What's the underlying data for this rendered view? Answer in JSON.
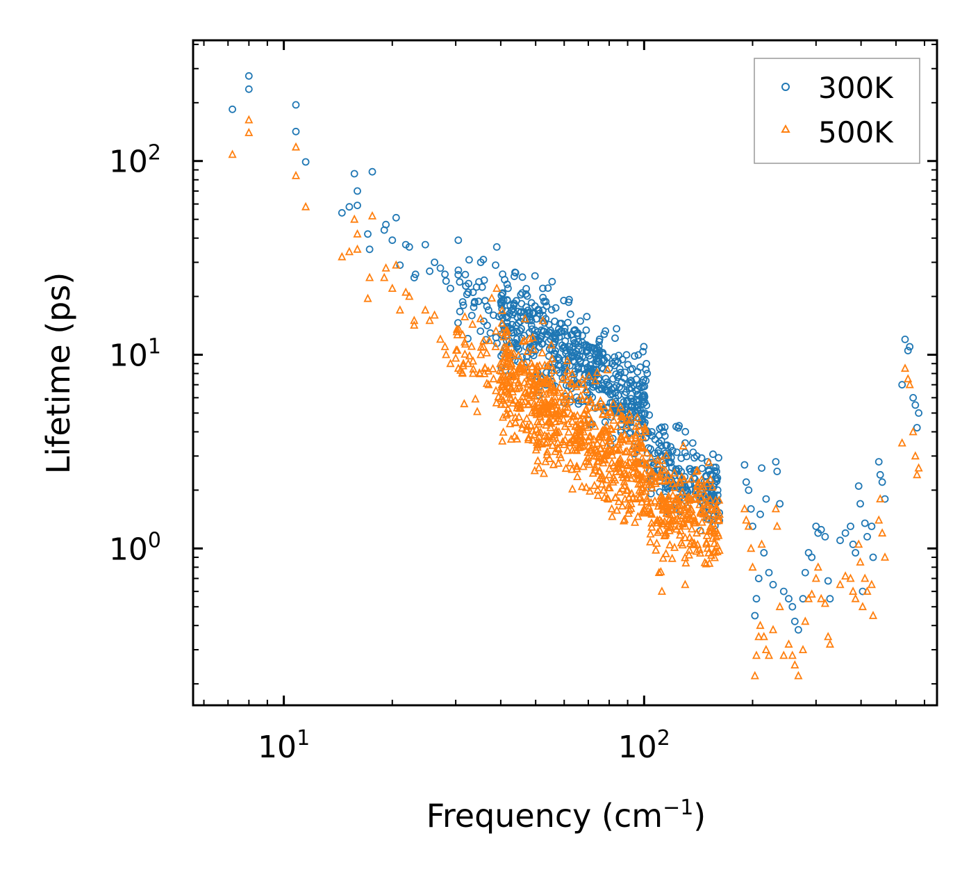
{
  "chart_data": {
    "type": "scatter",
    "title": "",
    "xlabel": "Frequency (cm",
    "xlabel_sup": "−1",
    "xlabel_end": ")",
    "ylabel": "Lifetime (ps)",
    "xscale": "log",
    "yscale": "log",
    "xlim": [
      5.6,
      650
    ],
    "ylim": [
      0.155,
      420
    ],
    "x_ticks": [
      {
        "value": 10,
        "base": "10",
        "exp": "1"
      },
      {
        "value": 100,
        "base": "10",
        "exp": "2"
      }
    ],
    "y_ticks": [
      {
        "value": 1,
        "base": "10",
        "exp": "0"
      },
      {
        "value": 10,
        "base": "10",
        "exp": "1"
      },
      {
        "value": 100,
        "base": "10",
        "exp": "2"
      }
    ],
    "legend_position": "top-right",
    "series": [
      {
        "name": "300K",
        "marker": "circle",
        "color": "#1f77b4",
        "points": [
          [
            7.2,
            185
          ],
          [
            8,
            275
          ],
          [
            8,
            235
          ],
          [
            10.8,
            195
          ],
          [
            10.8,
            142
          ],
          [
            11.5,
            99
          ],
          [
            14.5,
            54
          ],
          [
            15.2,
            58
          ],
          [
            15.7,
            86
          ],
          [
            16,
            70
          ],
          [
            16,
            59
          ],
          [
            17.3,
            35
          ],
          [
            17.6,
            88
          ],
          [
            17.1,
            42
          ],
          [
            19,
            44
          ],
          [
            19.2,
            47
          ],
          [
            20,
            39
          ],
          [
            20.5,
            51
          ],
          [
            21,
            29
          ],
          [
            21.8,
            37
          ],
          [
            22.3,
            36
          ],
          [
            23.2,
            26
          ],
          [
            23,
            25
          ],
          [
            24.7,
            37
          ],
          [
            25.4,
            27
          ],
          [
            26.2,
            30
          ],
          [
            27.2,
            28
          ],
          [
            28,
            26
          ],
          [
            28.2,
            24
          ],
          [
            29,
            22
          ],
          [
            30.5,
            39
          ],
          [
            31.5,
            18
          ],
          [
            32.5,
            21
          ],
          [
            33.5,
            21
          ],
          [
            35.2,
            30
          ],
          [
            35.8,
            31
          ],
          [
            36.2,
            19
          ],
          [
            36.2,
            19
          ],
          [
            37,
            17
          ],
          [
            38.2,
            16
          ],
          [
            38.7,
            29
          ],
          [
            39,
            36
          ],
          [
            40.5,
            15.5
          ],
          [
            41.2,
            13.5
          ],
          [
            42.5,
            18
          ],
          [
            44.2,
            19
          ],
          [
            48,
            13
          ],
          [
            50,
            12
          ],
          [
            52,
            12.5
          ],
          [
            55,
            12
          ],
          [
            58,
            13
          ],
          [
            62,
            11
          ],
          [
            65,
            10
          ],
          [
            70,
            8.2
          ],
          [
            75,
            9.2
          ],
          [
            80,
            8.5
          ],
          [
            82,
            7.5
          ],
          [
            85,
            7.8
          ],
          [
            90,
            7
          ],
          [
            95,
            6.5
          ],
          [
            100,
            6.2
          ],
          [
            102,
            8
          ],
          [
            105,
            4
          ],
          [
            110,
            3.5
          ],
          [
            115,
            3
          ],
          [
            120,
            3.2
          ],
          [
            125,
            4.3
          ],
          [
            130,
            3.5
          ],
          [
            140,
            3
          ],
          [
            150,
            2.8
          ],
          [
            155,
            2.4
          ],
          [
            160,
            2
          ],
          [
            190,
            2.7
          ],
          [
            192,
            2.2
          ],
          [
            195,
            2
          ],
          [
            198,
            1.6
          ],
          [
            200,
            1.3
          ],
          [
            203,
            0.45
          ],
          [
            205,
            0.55
          ],
          [
            208,
            0.7
          ],
          [
            210,
            1.5
          ],
          [
            212,
            2.6
          ],
          [
            215,
            0.95
          ],
          [
            218,
            1.8
          ],
          [
            222,
            0.75
          ],
          [
            228,
            0.65
          ],
          [
            232,
            2.8
          ],
          [
            234,
            2.5
          ],
          [
            238,
            1.7
          ],
          [
            244,
            0.6
          ],
          [
            252,
            0.55
          ],
          [
            258,
            0.5
          ],
          [
            262,
            0.42
          ],
          [
            268,
            0.38
          ],
          [
            276,
            0.55
          ],
          [
            280,
            0.75
          ],
          [
            286,
            0.95
          ],
          [
            292,
            0.9
          ],
          [
            300,
            1.3
          ],
          [
            304,
            1.2
          ],
          [
            310,
            1.25
          ],
          [
            318,
            1.15
          ],
          [
            324,
            0.68
          ],
          [
            328,
            0.55
          ],
          [
            350,
            1.1
          ],
          [
            362,
            1.2
          ],
          [
            374,
            1.3
          ],
          [
            380,
            1.05
          ],
          [
            386,
            0.95
          ],
          [
            394,
            2.1
          ],
          [
            398,
            1.7
          ],
          [
            404,
            0.6
          ],
          [
            410,
            1.35
          ],
          [
            416,
            1.15
          ],
          [
            428,
            1.3
          ],
          [
            432,
            0.9
          ],
          [
            448,
            2.8
          ],
          [
            452,
            2.4
          ],
          [
            458,
            2.2
          ],
          [
            466,
            1.8
          ],
          [
            520,
            7
          ],
          [
            530,
            12
          ],
          [
            540,
            10.5
          ],
          [
            546,
            11
          ],
          [
            558,
            6
          ],
          [
            566,
            5.5
          ],
          [
            572,
            4.2
          ],
          [
            578,
            5
          ]
        ]
      },
      {
        "name": "500K",
        "marker": "triangle",
        "color": "#ff7f0e",
        "points": [
          [
            7.2,
            108
          ],
          [
            8,
            163
          ],
          [
            8,
            140
          ],
          [
            10.8,
            118
          ],
          [
            10.8,
            84
          ],
          [
            11.5,
            58
          ],
          [
            14.5,
            32
          ],
          [
            15.2,
            34
          ],
          [
            15.7,
            50
          ],
          [
            16,
            42
          ],
          [
            16,
            35
          ],
          [
            17.3,
            25
          ],
          [
            17.6,
            52
          ],
          [
            17.1,
            19.5
          ],
          [
            19,
            25
          ],
          [
            19.2,
            28
          ],
          [
            20,
            22
          ],
          [
            20.5,
            29
          ],
          [
            21,
            17
          ],
          [
            21.8,
            21
          ],
          [
            22.3,
            20
          ],
          [
            23,
            15
          ],
          [
            23,
            14.2
          ],
          [
            24.7,
            17
          ],
          [
            25.4,
            15
          ],
          [
            26.2,
            16
          ],
          [
            27.2,
            12
          ],
          [
            28,
            11
          ],
          [
            28.2,
            10
          ],
          [
            29,
            9
          ],
          [
            30.5,
            8.5
          ],
          [
            31.5,
            9
          ],
          [
            32.5,
            9
          ],
          [
            33.5,
            8
          ],
          [
            35.2,
            10
          ],
          [
            35.8,
            11
          ],
          [
            36.2,
            8.5
          ],
          [
            37,
            7
          ],
          [
            38.2,
            7.5
          ],
          [
            38.7,
            11
          ],
          [
            39,
            22
          ],
          [
            40.5,
            13
          ],
          [
            41.2,
            6.5
          ],
          [
            42.5,
            5
          ],
          [
            44.2,
            8
          ],
          [
            48,
            6
          ],
          [
            50,
            5
          ],
          [
            52,
            4.5
          ],
          [
            55,
            4.2
          ],
          [
            58,
            4
          ],
          [
            62,
            3.5
          ],
          [
            65,
            3.2
          ],
          [
            70,
            2.8
          ],
          [
            75,
            2.5
          ],
          [
            80,
            2.4
          ],
          [
            82,
            2.2
          ],
          [
            85,
            2.6
          ],
          [
            90,
            2
          ],
          [
            95,
            1.8
          ],
          [
            100,
            1.6
          ],
          [
            102,
            2.2
          ],
          [
            105,
            1.5
          ],
          [
            110,
            0.75
          ],
          [
            112,
            0.6
          ],
          [
            115,
            1.2
          ],
          [
            120,
            1.4
          ],
          [
            125,
            1.3
          ],
          [
            130,
            0.65
          ],
          [
            140,
            1.2
          ],
          [
            150,
            1
          ],
          [
            155,
            1.5
          ],
          [
            160,
            1.2
          ],
          [
            190,
            1.6
          ],
          [
            192,
            1.4
          ],
          [
            195,
            1.3
          ],
          [
            198,
            1
          ],
          [
            200,
            0.8
          ],
          [
            203,
            0.22
          ],
          [
            205,
            0.28
          ],
          [
            208,
            0.35
          ],
          [
            210,
            0.4
          ],
          [
            212,
            1.05
          ],
          [
            215,
            0.35
          ],
          [
            218,
            0.3
          ],
          [
            222,
            0.28
          ],
          [
            228,
            0.38
          ],
          [
            232,
            1.6
          ],
          [
            234,
            1.3
          ],
          [
            238,
            0.5
          ],
          [
            244,
            0.28
          ],
          [
            252,
            0.32
          ],
          [
            258,
            0.28
          ],
          [
            262,
            0.25
          ],
          [
            268,
            0.22
          ],
          [
            276,
            0.3
          ],
          [
            280,
            0.42
          ],
          [
            286,
            0.55
          ],
          [
            292,
            0.58
          ],
          [
            300,
            0.7
          ],
          [
            304,
            0.8
          ],
          [
            310,
            0.55
          ],
          [
            318,
            0.52
          ],
          [
            324,
            0.35
          ],
          [
            328,
            0.32
          ],
          [
            350,
            0.65
          ],
          [
            362,
            0.72
          ],
          [
            374,
            0.7
          ],
          [
            380,
            0.6
          ],
          [
            386,
            0.55
          ],
          [
            394,
            1.05
          ],
          [
            398,
            0.85
          ],
          [
            404,
            0.5
          ],
          [
            410,
            0.7
          ],
          [
            416,
            0.6
          ],
          [
            428,
            0.65
          ],
          [
            432,
            0.45
          ],
          [
            448,
            1.4
          ],
          [
            452,
            1.8
          ],
          [
            458,
            1.2
          ],
          [
            466,
            0.9
          ],
          [
            520,
            3.5
          ],
          [
            530,
            8.5
          ],
          [
            540,
            7.5
          ],
          [
            546,
            7
          ],
          [
            558,
            4
          ],
          [
            566,
            3
          ],
          [
            572,
            2.4
          ],
          [
            578,
            2.6
          ]
        ]
      }
    ],
    "clusters": [
      {
        "series": "300K",
        "x": [
          40,
          102
        ],
        "yc": [
          16,
          5.5
        ],
        "spread": 0.28,
        "n": 520
      },
      {
        "series": "500K",
        "x": [
          40,
          102
        ],
        "yc": [
          8,
          2.4
        ],
        "spread": 0.32,
        "n": 620
      },
      {
        "series": "300K",
        "x": [
          102,
          162
        ],
        "yc": [
          2.8,
          1.9
        ],
        "spread": 0.22,
        "n": 200
      },
      {
        "series": "500K",
        "x": [
          102,
          162
        ],
        "yc": [
          1.7,
          1.3
        ],
        "spread": 0.28,
        "n": 240
      },
      {
        "series": "300K",
        "x": [
          30,
          42
        ],
        "yc": [
          20,
          15
        ],
        "spread": 0.22,
        "n": 40
      },
      {
        "series": "500K",
        "x": [
          30,
          42
        ],
        "yc": [
          10,
          8
        ],
        "spread": 0.28,
        "n": 50
      }
    ]
  }
}
